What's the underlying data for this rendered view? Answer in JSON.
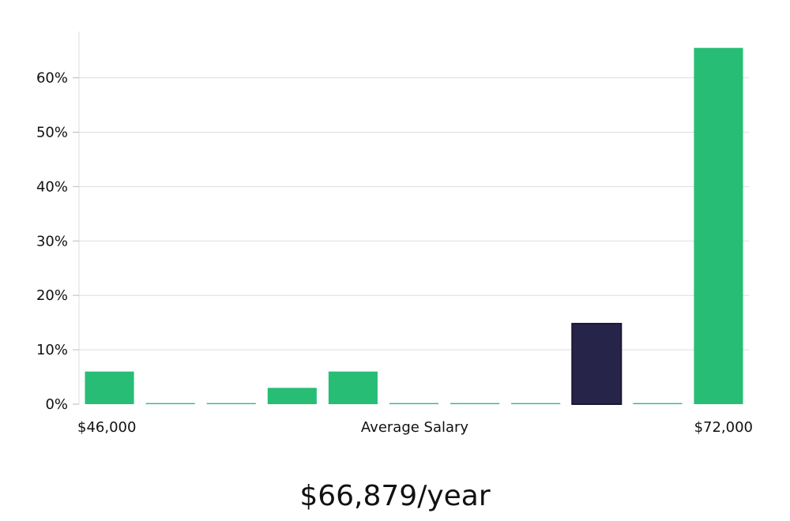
{
  "chart_data": {
    "type": "bar",
    "ylim": [
      0,
      68.5
    ],
    "yticks": [
      0,
      10,
      20,
      30,
      40,
      50,
      60
    ],
    "ytick_suffix": "%",
    "grid": true,
    "xlabel": "Average Salary",
    "x_start_label": "$46,000",
    "x_end_label": "$72,000",
    "values": [
      6,
      0.2,
      0.2,
      3,
      6,
      0.2,
      0.2,
      0.2,
      14.8,
      0.2,
      65.5
    ],
    "highlight_index": 8,
    "colors": {
      "bar": "#27bd75",
      "highlight": "#27244a"
    }
  },
  "summary": {
    "salary": "$66,879/year"
  }
}
